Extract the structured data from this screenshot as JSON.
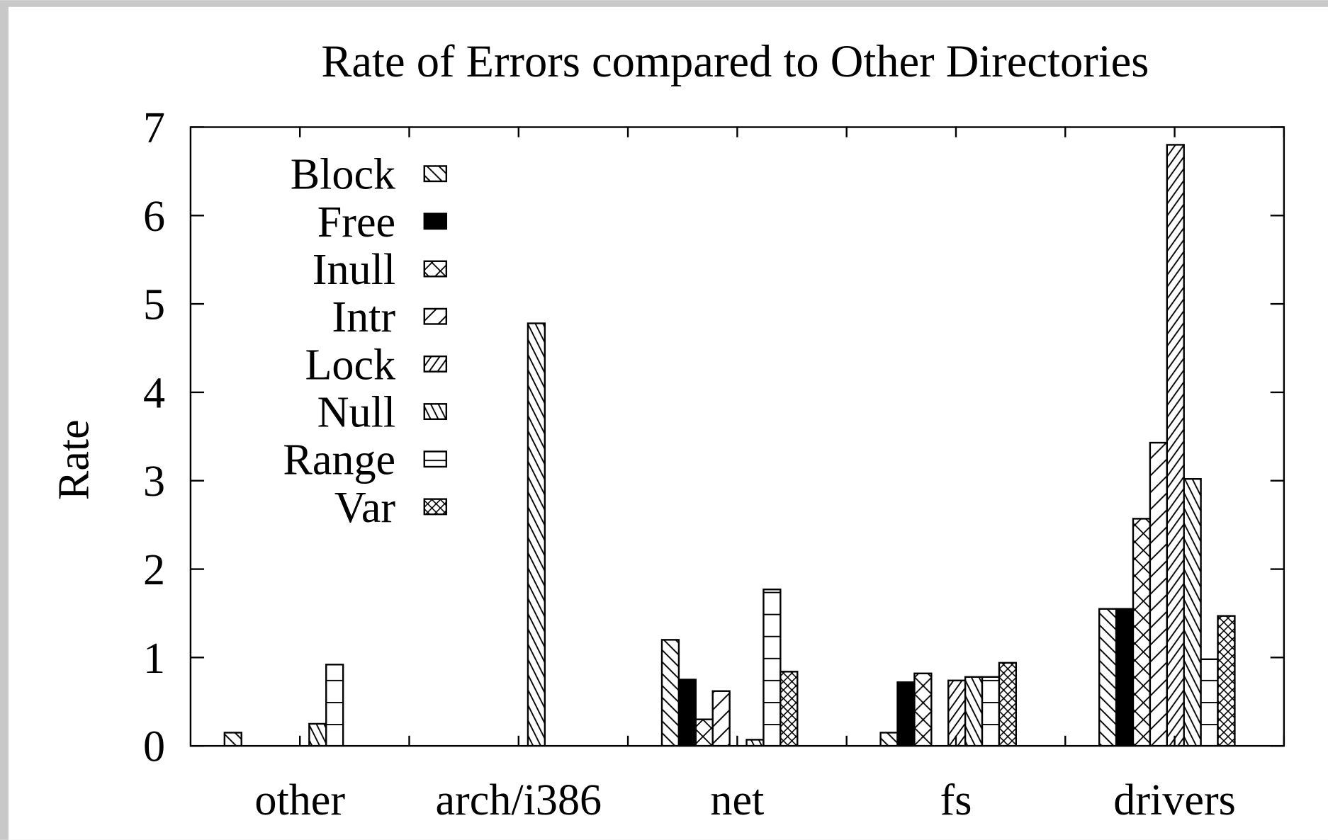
{
  "chart_data": {
    "type": "bar",
    "title": "Rate of Errors compared to Other Directories",
    "y_label": "Rate",
    "categories": [
      "other",
      "arch/i386",
      "net",
      "fs",
      "drivers"
    ],
    "series": [
      {
        "name": "Block",
        "color": "#000000",
        "pattern": "back-hatch",
        "values": [
          0.15,
          0,
          1.2,
          0.15,
          1.55
        ]
      },
      {
        "name": "Free",
        "color": "#000000",
        "pattern": "solid",
        "values": [
          0,
          0,
          0.75,
          0.72,
          1.55
        ]
      },
      {
        "name": "Inull",
        "color": "#000000",
        "pattern": "cross",
        "values": [
          0,
          0,
          0.3,
          0.82,
          2.57
        ]
      },
      {
        "name": "Intr",
        "color": "#000000",
        "pattern": "fwd-hatch-wide",
        "values": [
          0,
          0,
          0.62,
          0,
          3.43
        ]
      },
      {
        "name": "Lock",
        "color": "#000000",
        "pattern": "fwd-hatch",
        "values": [
          0,
          0,
          0,
          0.74,
          6.8
        ]
      },
      {
        "name": "Null",
        "color": "#000000",
        "pattern": "back-hatch-dense",
        "values": [
          0.25,
          4.78,
          0.07,
          0.78,
          3.02
        ]
      },
      {
        "name": "Range",
        "color": "#000000",
        "pattern": "horizontal",
        "values": [
          0.92,
          0,
          1.77,
          0.78,
          0.98
        ]
      },
      {
        "name": "Var",
        "color": "#000000",
        "pattern": "cross-dense",
        "values": [
          0,
          0,
          0.84,
          0.94,
          1.47
        ]
      }
    ],
    "ylim": [
      0,
      7
    ],
    "yticks": [
      0,
      1,
      2,
      3,
      4,
      5,
      6,
      7
    ],
    "legend": "top-left"
  }
}
